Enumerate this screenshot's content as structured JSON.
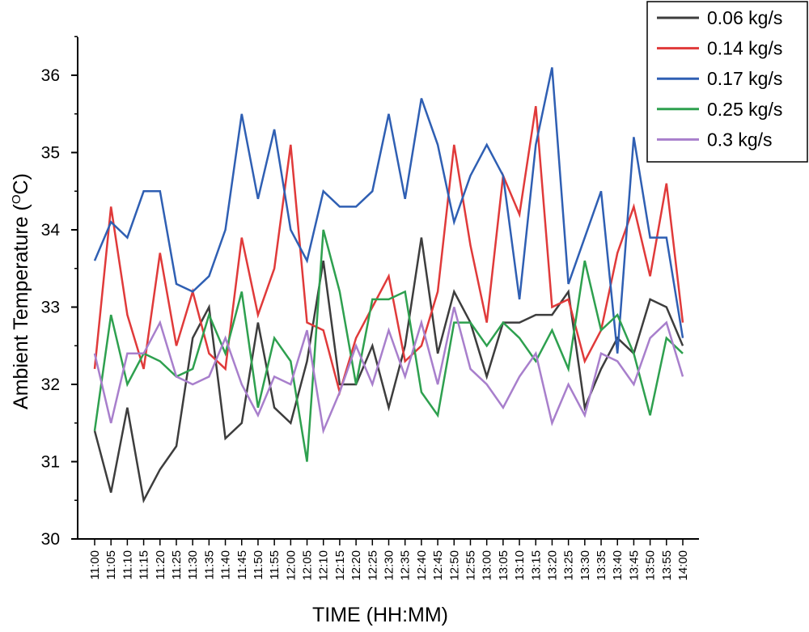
{
  "chart_data": {
    "type": "line",
    "title": "",
    "xlabel": "TIME (HH:MM)",
    "ylabel": "Ambient Temperature (°C)",
    "ylabel_main": "Ambient Temperature (",
    "ylabel_sup": "O",
    "ylabel_unit": "C)",
    "ylim": [
      30,
      36.6
    ],
    "yticks": [
      30,
      31,
      32,
      33,
      34,
      35,
      36
    ],
    "grid": false,
    "legend_position": "top-right",
    "x": [
      "11:00",
      "11:05",
      "11:10",
      "11:15",
      "11:20",
      "11:25",
      "11:30",
      "11:35",
      "11:40",
      "11:45",
      "11:50",
      "11:55",
      "12:00",
      "12:05",
      "12:10",
      "12:15",
      "12:20",
      "12:25",
      "12:30",
      "12:35",
      "12:40",
      "12:45",
      "12:50",
      "12:55",
      "13:00",
      "13:05",
      "13:10",
      "13:15",
      "13:20",
      "13:25",
      "13:30",
      "13:35",
      "13:40",
      "13:45",
      "13:50",
      "13:55",
      "14:00"
    ],
    "series": [
      {
        "name": "0.06 kg/s",
        "color": "#3d3d3d",
        "values": [
          31.4,
          30.6,
          31.7,
          30.5,
          30.9,
          31.2,
          32.6,
          33.0,
          31.3,
          31.5,
          32.8,
          31.7,
          31.5,
          32.3,
          33.6,
          32.0,
          32.0,
          32.5,
          31.7,
          32.5,
          33.9,
          32.4,
          33.2,
          32.8,
          32.1,
          32.8,
          32.8,
          32.9,
          32.9,
          33.2,
          31.7,
          32.2,
          32.6,
          32.4,
          33.1,
          33.0,
          32.5
        ]
      },
      {
        "name": "0.14 kg/s",
        "color": "#e03a3a",
        "values": [
          32.2,
          34.3,
          32.9,
          32.2,
          33.7,
          32.5,
          33.2,
          32.4,
          32.2,
          33.9,
          32.9,
          33.5,
          35.1,
          32.8,
          32.7,
          31.9,
          32.6,
          33.0,
          33.4,
          32.3,
          32.5,
          33.2,
          35.1,
          33.8,
          32.8,
          34.7,
          34.2,
          35.6,
          33.0,
          33.1,
          32.3,
          32.7,
          33.7,
          34.3,
          33.4,
          34.6,
          32.8
        ]
      },
      {
        "name": "0.17 kg/s",
        "color": "#2f5fb3",
        "values": [
          33.6,
          34.1,
          33.9,
          34.5,
          34.5,
          33.3,
          33.2,
          33.4,
          34.0,
          35.5,
          34.4,
          35.3,
          34.0,
          33.6,
          34.5,
          34.3,
          34.3,
          34.5,
          35.5,
          34.4,
          35.7,
          35.1,
          34.1,
          34.7,
          35.1,
          34.7,
          33.1,
          35.1,
          36.1,
          33.3,
          33.9,
          34.5,
          32.4,
          35.2,
          33.9,
          33.9,
          32.6
        ]
      },
      {
        "name": "0.25 kg/s",
        "color": "#2ea04f",
        "values": [
          31.4,
          32.9,
          32.0,
          32.4,
          32.3,
          32.1,
          32.2,
          32.9,
          32.4,
          33.2,
          31.7,
          32.6,
          32.3,
          31.0,
          34.0,
          33.2,
          32.0,
          33.1,
          33.1,
          33.2,
          31.9,
          31.6,
          32.8,
          32.8,
          32.5,
          32.8,
          32.6,
          32.3,
          32.7,
          32.2,
          33.6,
          32.7,
          32.9,
          32.4,
          31.6,
          32.6,
          32.4
        ]
      },
      {
        "name": "0.3 kg/s",
        "color": "#a87fcc",
        "values": [
          32.4,
          31.5,
          32.4,
          32.4,
          32.8,
          32.1,
          32.0,
          32.1,
          32.6,
          32.0,
          31.6,
          32.1,
          32.0,
          32.7,
          31.4,
          31.9,
          32.5,
          32.0,
          32.7,
          32.1,
          32.8,
          32.0,
          33.0,
          32.2,
          32.0,
          31.7,
          32.1,
          32.4,
          31.5,
          32.0,
          31.6,
          32.4,
          32.3,
          32.0,
          32.6,
          32.8,
          32.1
        ]
      }
    ]
  }
}
